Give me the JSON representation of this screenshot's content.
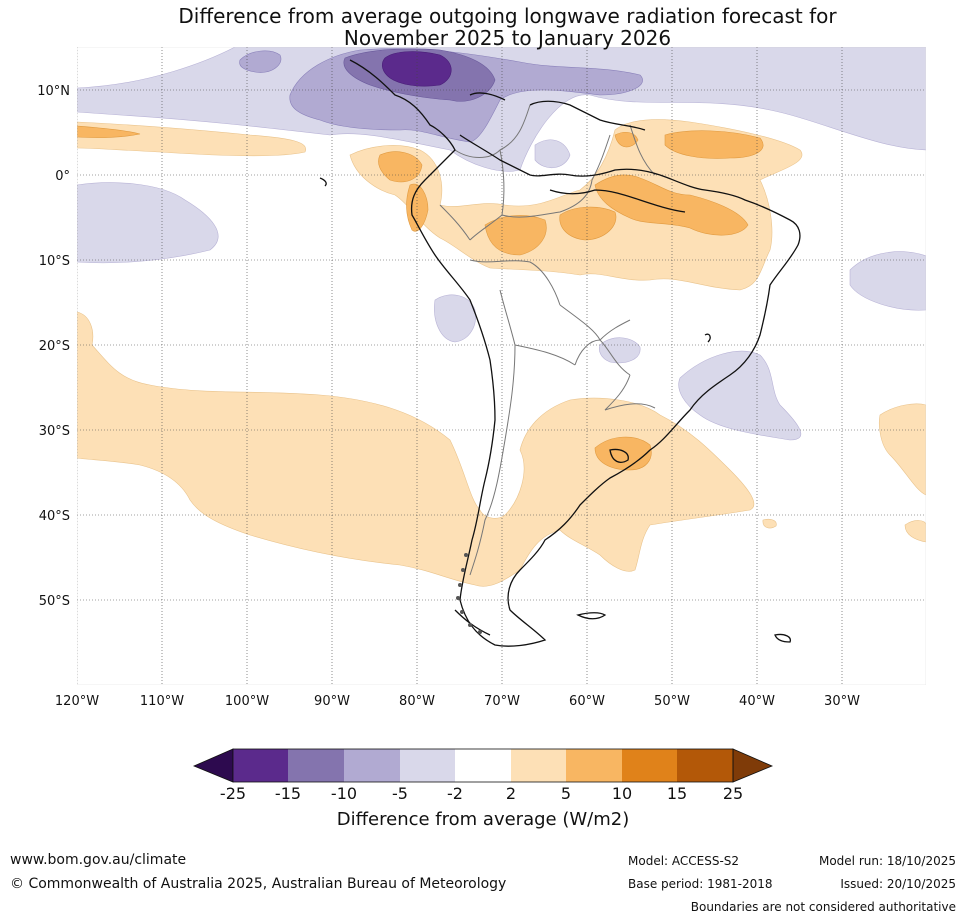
{
  "title": {
    "line1": "Difference from average outgoing longwave radiation forecast for",
    "line2": "November 2025 to January 2026"
  },
  "map": {
    "lat_labels": [
      "10°N",
      "0°",
      "10°S",
      "20°S",
      "30°S",
      "40°S",
      "50°S"
    ],
    "lon_labels": [
      "120°W",
      "110°W",
      "100°W",
      "90°W",
      "80°W",
      "70°W",
      "60°W",
      "50°W",
      "40°W",
      "30°W"
    ]
  },
  "legend": {
    "title": "Difference from average (W/m2)",
    "ticks": [
      "-25",
      "-15",
      "-10",
      "-5",
      "-2",
      "2",
      "5",
      "10",
      "15",
      "25"
    ],
    "colors": [
      "#2d0a4f",
      "#5b2a8c",
      "#8474ae",
      "#b1aad2",
      "#d9d8ea",
      "#ffffff",
      "#fde0b6",
      "#f8b662",
      "#e0821a",
      "#b35808",
      "#7f3b08"
    ]
  },
  "footer": {
    "url": "www.bom.gov.au/climate",
    "copyright": "© Commonwealth of Australia 2025, Australian Bureau of Meteorology",
    "model": "Model: ACCESS-S2",
    "base_period": "Base period: 1981-2018",
    "model_run": "Model run: 18/10/2025",
    "issued": "Issued: 20/10/2025",
    "disclaimer": "Boundaries are not considered authoritative"
  }
}
